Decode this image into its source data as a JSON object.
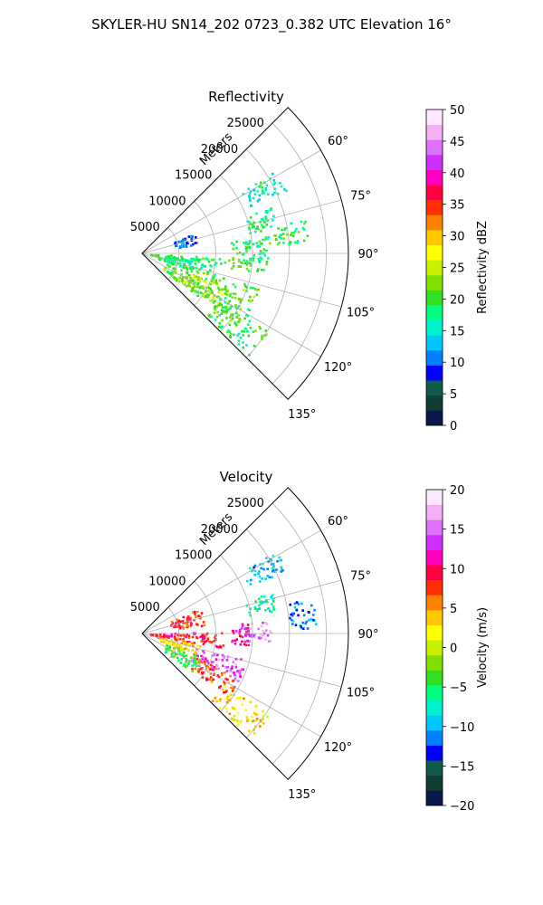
{
  "suptitle": "SKYLER-HU  SN14_202  0723_0.382 UTC Elevation 16°",
  "chart_data": [
    {
      "type": "heatmap",
      "subtype": "polar-radar-ppi",
      "title": "Reflectivity",
      "r_axis_label": "Meters",
      "r_ticks": [
        5000,
        10000,
        15000,
        20000,
        25000
      ],
      "r_tick_labels": [
        "5000",
        "10000",
        "15000",
        "20000",
        "25000"
      ],
      "rlim": [
        0,
        28000
      ],
      "theta_ticks_deg": [
        60,
        75,
        90,
        105,
        120,
        135
      ],
      "theta_tick_labels": [
        "60°",
        "75°",
        "90°",
        "105°",
        "120°",
        "135°"
      ],
      "theta_range_deg": [
        45,
        135
      ],
      "grid": true,
      "colorbar": {
        "label": "Reflectivity dBZ",
        "range": [
          0,
          50
        ],
        "ticks": [
          0,
          5,
          10,
          15,
          20,
          25,
          30,
          35,
          40,
          45,
          50
        ],
        "tick_labels": [
          "0",
          "5",
          "10",
          "15",
          "20",
          "25",
          "30",
          "35",
          "40",
          "45",
          "50"
        ],
        "colormap": [
          "#081848",
          "#103e34",
          "#0f5c48",
          "#0000ff",
          "#0080ff",
          "#00c8ff",
          "#00f0d0",
          "#00ff80",
          "#30e020",
          "#80e000",
          "#c8f000",
          "#ffff00",
          "#ffc800",
          "#ff8000",
          "#ff3000",
          "#ff0040",
          "#ff00c0",
          "#d030ff",
          "#e070ff",
          "#f4b0f4",
          "#ffe8ff"
        ]
      },
      "echo_regions": [
        {
          "az": [
            58,
            66
          ],
          "r": [
            15500,
            21500
          ],
          "value": 16
        },
        {
          "az": [
            70,
            79
          ],
          "r": [
            14500,
            18500
          ],
          "value": 18
        },
        {
          "az": [
            78,
            86
          ],
          "r": [
            18000,
            22500
          ],
          "value": 19
        },
        {
          "az": [
            82,
            95
          ],
          "r": [
            12000,
            17500
          ],
          "value": 19
        },
        {
          "az": [
            68,
            80
          ],
          "r": [
            4500,
            7500
          ],
          "value": 10
        },
        {
          "az": [
            92,
            99
          ],
          "r": [
            1000,
            17000
          ],
          "value": 20
        },
        {
          "az": [
            98,
            108
          ],
          "r": [
            2000,
            9500
          ],
          "value": 18
        },
        {
          "az": [
            106,
            128
          ],
          "r": [
            3500,
            16500
          ],
          "value": 21
        },
        {
          "az": [
            112,
            126
          ],
          "r": [
            6500,
            12500
          ],
          "value": 24
        },
        {
          "az": [
            120,
            134
          ],
          "r": [
            12000,
            20000
          ],
          "value": 19
        }
      ]
    },
    {
      "type": "heatmap",
      "subtype": "polar-radar-ppi",
      "title": "Velocity",
      "r_axis_label": "Meters",
      "r_ticks": [
        5000,
        10000,
        15000,
        20000,
        25000
      ],
      "r_tick_labels": [
        "5000",
        "10000",
        "15000",
        "20000",
        "25000"
      ],
      "rlim": [
        0,
        28000
      ],
      "theta_ticks_deg": [
        60,
        75,
        90,
        105,
        120,
        135
      ],
      "theta_tick_labels": [
        "60°",
        "75°",
        "90°",
        "105°",
        "120°",
        "135°"
      ],
      "theta_range_deg": [
        45,
        135
      ],
      "grid": true,
      "colorbar": {
        "label": "Velocity (m/s)",
        "range": [
          -20,
          20
        ],
        "ticks": [
          -20,
          -15,
          -10,
          -5,
          0,
          5,
          10,
          15,
          20
        ],
        "tick_labels": [
          "−20",
          "−15",
          "−10",
          "−5",
          "0",
          "5",
          "10",
          "15",
          "20"
        ],
        "colormap": [
          "#081848",
          "#103e34",
          "#0f5c48",
          "#0000ff",
          "#0080ff",
          "#00c8ff",
          "#00f0d0",
          "#00ff80",
          "#30e020",
          "#80e000",
          "#c8f000",
          "#ffff00",
          "#ffc800",
          "#ff8000",
          "#ff3000",
          "#ff0040",
          "#ff00c0",
          "#d030ff",
          "#e070ff",
          "#f4b0f4",
          "#ffe8ff"
        ]
      },
      "echo_regions": [
        {
          "az": [
            58,
            66
          ],
          "r": [
            15500,
            21500
          ],
          "value": -10
        },
        {
          "az": [
            72,
            80
          ],
          "r": [
            14500,
            18500
          ],
          "value": -7
        },
        {
          "az": [
            78,
            88
          ],
          "r": [
            20000,
            23500
          ],
          "value": -11
        },
        {
          "az": [
            84,
            94
          ],
          "r": [
            14000,
            17500
          ],
          "value": 16
        },
        {
          "az": [
            84,
            96
          ],
          "r": [
            12000,
            14500
          ],
          "value": 11
        },
        {
          "az": [
            66,
            82
          ],
          "r": [
            4000,
            8500
          ],
          "value": 8
        },
        {
          "az": [
            88,
            100
          ],
          "r": [
            1000,
            11000
          ],
          "value": 9
        },
        {
          "az": [
            100,
            112
          ],
          "r": [
            2000,
            8000
          ],
          "value": 3
        },
        {
          "az": [
            104,
            118
          ],
          "r": [
            7500,
            14500
          ],
          "value": 14
        },
        {
          "az": [
            112,
            128
          ],
          "r": [
            3500,
            8500
          ],
          "value": -4
        },
        {
          "az": [
            114,
            126
          ],
          "r": [
            8000,
            14500
          ],
          "value": 7
        },
        {
          "az": [
            122,
            134
          ],
          "r": [
            13000,
            20500
          ],
          "value": 3
        }
      ]
    }
  ]
}
